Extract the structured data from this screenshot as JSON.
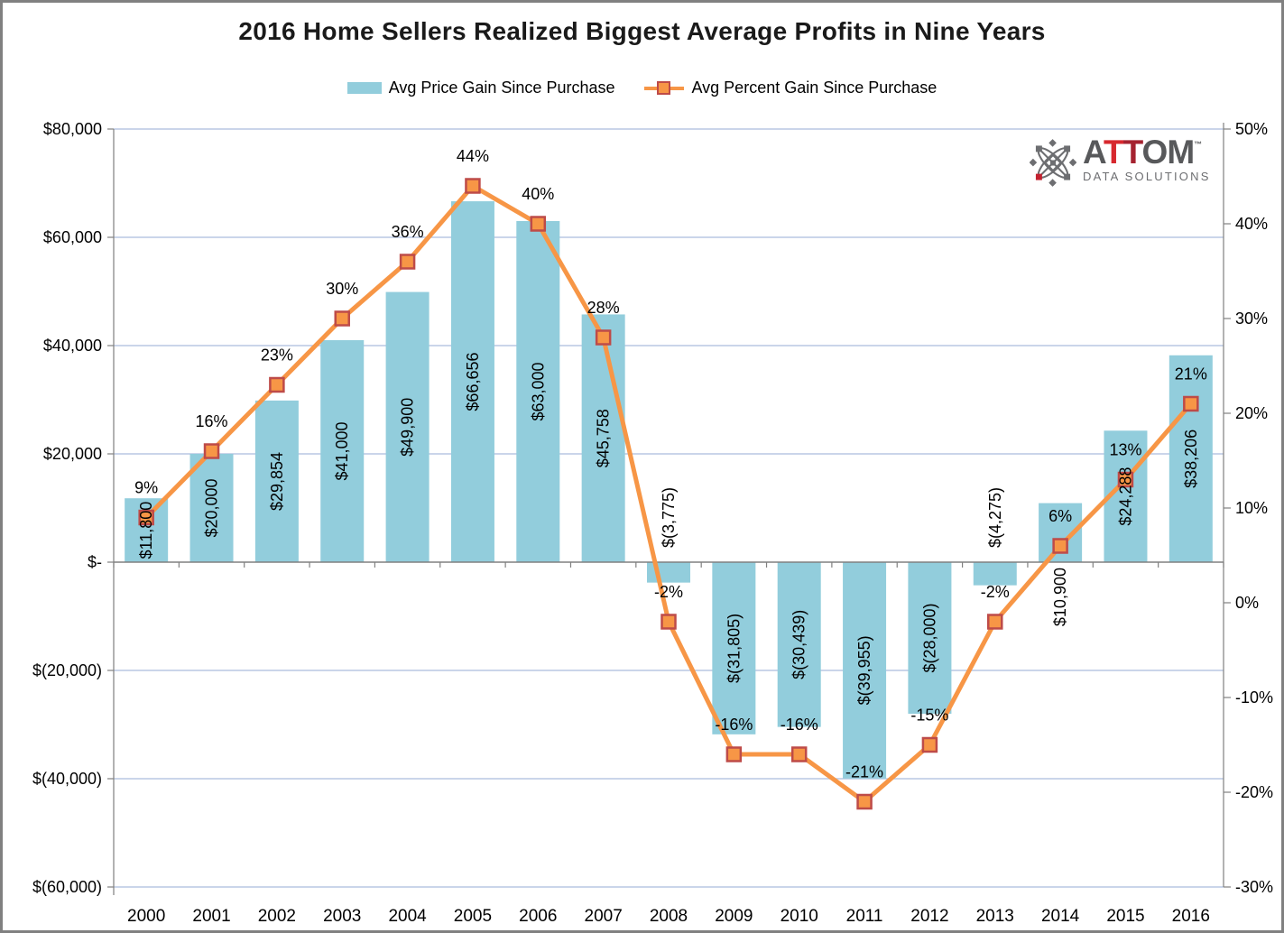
{
  "chart_data": {
    "type": "combo-bar-line",
    "title": "2016 Home Sellers Realized Biggest Average Profits in Nine Years",
    "x": [
      2000,
      2001,
      2002,
      2003,
      2004,
      2005,
      2006,
      2007,
      2008,
      2009,
      2010,
      2011,
      2012,
      2013,
      2014,
      2015,
      2016
    ],
    "series": [
      {
        "name": "Avg Price Gain Since Purchase",
        "type": "bar",
        "axis": "left",
        "color": "#92CDDC",
        "values": [
          11800,
          20000,
          29854,
          41000,
          49900,
          66656,
          63000,
          45758,
          -3775,
          -31805,
          -30439,
          -39955,
          -28000,
          -4275,
          10900,
          24288,
          38206
        ],
        "labels": [
          "$11,800",
          "$20,000",
          "$29,854",
          "$41,000",
          "$49,900",
          "$66,656",
          "$63,000",
          "$45,758",
          "$(3,775)",
          "$(31,805)",
          "$(30,439)",
          "$(39,955)",
          "$(28,000)",
          "$(4,275)",
          "$10,900",
          "$24,288",
          "$38,206"
        ]
      },
      {
        "name": "Avg Percent Gain Since Purchase",
        "type": "line",
        "axis": "right",
        "color": "#F79646",
        "marker": "square",
        "marker_border": "#BE4B48",
        "values": [
          9,
          16,
          23,
          30,
          36,
          44,
          40,
          28,
          -2,
          -16,
          -16,
          -21,
          -15,
          -2,
          6,
          13,
          21
        ],
        "labels": [
          "9%",
          "16%",
          "23%",
          "30%",
          "36%",
          "44%",
          "40%",
          "28%",
          "-2%",
          "-16%",
          "-16%",
          "-21%",
          "-15%",
          "-2%",
          "6%",
          "13%",
          "21%"
        ]
      }
    ],
    "left_axis": {
      "tick_values": [
        80000,
        60000,
        40000,
        20000,
        0,
        -20000,
        -40000,
        -60000
      ],
      "tick_labels": [
        "$80,000",
        "$60,000",
        "$40,000",
        "$20,000",
        "$-",
        "$(20,000)",
        "$(40,000)",
        "$(60,000)"
      ],
      "range": [
        -60000,
        80000
      ]
    },
    "right_axis": {
      "tick_values": [
        50,
        40,
        30,
        20,
        10,
        0,
        -10,
        -20,
        -30
      ],
      "tick_labels": [
        "50%",
        "40%",
        "30%",
        "20%",
        "10%",
        "0%",
        "-10%",
        "-20%",
        "-30%"
      ],
      "range": [
        -30,
        50
      ]
    },
    "grid": true,
    "legend_position": "top",
    "gridline_color": "#B9C7E4",
    "axis_line_color": "#808080"
  },
  "logo": {
    "chars": [
      "A",
      "T",
      "T",
      "O",
      "M"
    ],
    "char_colors": [
      "#58595B",
      "#D7282E",
      "#A52330",
      "#58595B",
      "#58595B"
    ],
    "tm": "™",
    "subtitle": "DATA SOLUTIONS",
    "icon_gray": "#6D6E71",
    "icon_red": "#C3212F"
  }
}
